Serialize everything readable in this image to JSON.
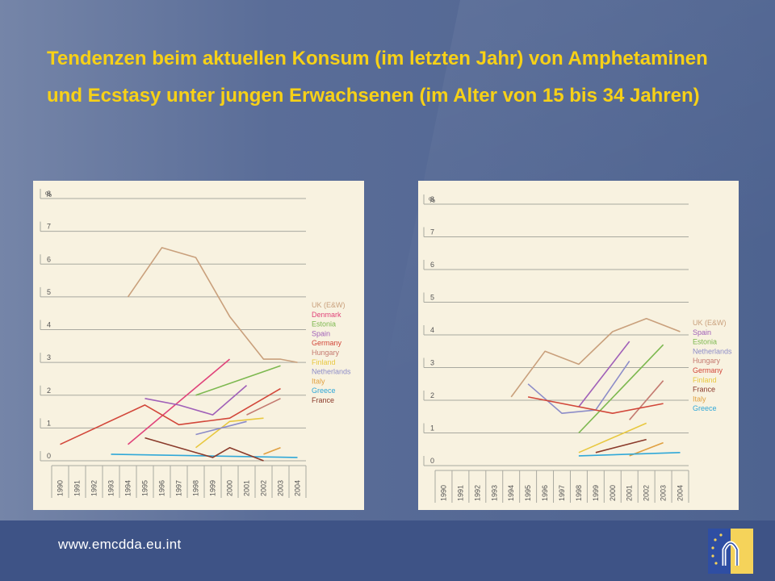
{
  "title": "Tendenzen beim aktuellen Konsum (im letzten Jahr) von Amphetaminen und Ecstasy unter jungen Erwachsenen (im Alter von 15 bis 34 Jahren)",
  "footer": {
    "url": "www.emcdda.eu.int"
  },
  "chart_data": [
    {
      "type": "line",
      "title": "Amphetamine",
      "ylabel": "%",
      "ylim": [
        0,
        8
      ],
      "y_ticks": [
        0,
        1,
        2,
        3,
        4,
        5,
        6,
        7,
        8
      ],
      "x": [
        1990,
        1991,
        1992,
        1993,
        1994,
        1995,
        1996,
        1997,
        1998,
        1999,
        2000,
        2001,
        2002,
        2003,
        2004
      ],
      "legend": [
        "UK (E&W)",
        "Denmark",
        "Estonia",
        "Spain",
        "Germany",
        "Hungary",
        "Finland",
        "Netherlands",
        "Italy",
        "Greece",
        "France"
      ],
      "series": [
        {
          "name": "UK (E&W)",
          "color": "#c9a07c",
          "points": [
            [
              1994,
              5.0
            ],
            [
              1996,
              6.5
            ],
            [
              1998,
              6.2
            ],
            [
              2000,
              4.4
            ],
            [
              2002,
              3.1
            ],
            [
              2003,
              3.1
            ],
            [
              2004,
              3.0
            ]
          ]
        },
        {
          "name": "Denmark",
          "color": "#e0447a",
          "points": [
            [
              1994,
              0.5
            ],
            [
              2000,
              3.1
            ]
          ]
        },
        {
          "name": "Estonia",
          "color": "#7cb84f",
          "points": [
            [
              1998,
              2.0
            ],
            [
              2003,
              2.9
            ]
          ]
        },
        {
          "name": "Spain",
          "color": "#a060b8",
          "points": [
            [
              1995,
              1.9
            ],
            [
              1997,
              1.7
            ],
            [
              1999,
              1.4
            ],
            [
              2001,
              2.3
            ]
          ]
        },
        {
          "name": "Germany",
          "color": "#d2473a",
          "points": [
            [
              1990,
              0.5
            ],
            [
              1995,
              1.7
            ],
            [
              1997,
              1.1
            ],
            [
              2000,
              1.3
            ],
            [
              2003,
              2.2
            ]
          ]
        },
        {
          "name": "Hungary",
          "color": "#c47a70",
          "points": [
            [
              2001,
              1.4
            ],
            [
              2003,
              1.9
            ]
          ]
        },
        {
          "name": "Finland",
          "color": "#e8c840",
          "points": [
            [
              1998,
              0.4
            ],
            [
              2000,
              1.2
            ],
            [
              2002,
              1.3
            ]
          ]
        },
        {
          "name": "Netherlands",
          "color": "#8c8cc8",
          "points": [
            [
              1998,
              0.8
            ],
            [
              2001,
              1.2
            ]
          ]
        },
        {
          "name": "Italy",
          "color": "#e0a040",
          "points": [
            [
              2002,
              0.2
            ],
            [
              2003,
              0.4
            ]
          ]
        },
        {
          "name": "Greece",
          "color": "#30a8d8",
          "points": [
            [
              1993,
              0.2
            ],
            [
              2004,
              0.1
            ]
          ]
        },
        {
          "name": "France",
          "color": "#8a3a2a",
          "points": [
            [
              1995,
              0.7
            ],
            [
              1999,
              0.1
            ],
            [
              2000,
              0.4
            ],
            [
              2002,
              0.0
            ]
          ]
        }
      ]
    },
    {
      "type": "line",
      "title": "Ecstasy",
      "ylabel": "%",
      "ylim": [
        0,
        8
      ],
      "y_ticks": [
        0,
        1,
        2,
        3,
        4,
        5,
        6,
        7,
        8
      ],
      "x": [
        1990,
        1991,
        1992,
        1993,
        1994,
        1995,
        1996,
        1997,
        1998,
        1999,
        2000,
        2001,
        2002,
        2003,
        2004
      ],
      "legend": [
        "UK (E&W)",
        "Spain",
        "Estonia",
        "Netherlands",
        "Hungary",
        "Germany",
        "Finland",
        "France",
        "Italy",
        "Greece"
      ],
      "series": [
        {
          "name": "UK (E&W)",
          "color": "#c9a07c",
          "points": [
            [
              1994,
              2.1
            ],
            [
              1996,
              3.5
            ],
            [
              1998,
              3.1
            ],
            [
              2000,
              4.1
            ],
            [
              2002,
              4.5
            ],
            [
              2004,
              4.1
            ]
          ]
        },
        {
          "name": "Spain",
          "color": "#a060b8",
          "points": [
            [
              1998,
              1.8
            ],
            [
              2001,
              3.8
            ]
          ]
        },
        {
          "name": "Estonia",
          "color": "#7cb84f",
          "points": [
            [
              1998,
              1.0
            ],
            [
              2003,
              3.7
            ]
          ]
        },
        {
          "name": "Netherlands",
          "color": "#8c8cc8",
          "points": [
            [
              1995,
              2.5
            ],
            [
              1997,
              1.6
            ],
            [
              1999,
              1.7
            ],
            [
              2001,
              3.2
            ]
          ]
        },
        {
          "name": "Hungary",
          "color": "#c47a70",
          "points": [
            [
              2001,
              1.4
            ],
            [
              2003,
              2.6
            ]
          ]
        },
        {
          "name": "Germany",
          "color": "#d2473a",
          "points": [
            [
              1995,
              2.1
            ],
            [
              2000,
              1.6
            ],
            [
              2003,
              1.9
            ]
          ]
        },
        {
          "name": "Finland",
          "color": "#e8c840",
          "points": [
            [
              1998,
              0.4
            ],
            [
              2002,
              1.3
            ]
          ]
        },
        {
          "name": "France",
          "color": "#8a3a2a",
          "points": [
            [
              1999,
              0.4
            ],
            [
              2002,
              0.8
            ]
          ]
        },
        {
          "name": "Italy",
          "color": "#e0a040",
          "points": [
            [
              2001,
              0.3
            ],
            [
              2003,
              0.7
            ]
          ]
        },
        {
          "name": "Greece",
          "color": "#30a8d8",
          "points": [
            [
              1998,
              0.3
            ],
            [
              2004,
              0.4
            ]
          ]
        }
      ]
    }
  ]
}
